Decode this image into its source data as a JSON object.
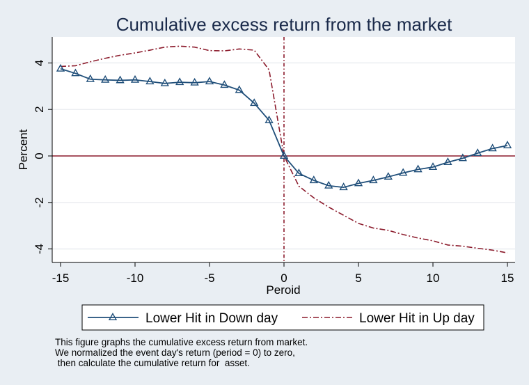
{
  "chart_data": {
    "type": "line",
    "title": "Cumulative excess return from the market",
    "xlabel": "Peroid",
    "ylabel": "Percent",
    "x": [
      -15,
      -14,
      -13,
      -12,
      -11,
      -10,
      -9,
      -8,
      -7,
      -6,
      -5,
      -4,
      -3,
      -2,
      -1,
      0,
      1,
      2,
      3,
      4,
      5,
      6,
      7,
      8,
      9,
      10,
      11,
      12,
      13,
      14,
      15
    ],
    "xlim": [
      -15,
      15
    ],
    "ylim": [
      -4.5,
      5
    ],
    "xticks": [
      -15,
      -10,
      -5,
      0,
      5,
      10,
      15
    ],
    "yticks": [
      -4,
      -2,
      0,
      2,
      4
    ],
    "grid": "horizontal",
    "reference_lines": {
      "x": 0,
      "y": 0
    },
    "legend_position": "bottom",
    "series": [
      {
        "name": "Lower Hit in Down day",
        "color": "#1f4e79",
        "style": "solid-with-triangle-markers",
        "values": [
          3.75,
          3.55,
          3.3,
          3.27,
          3.25,
          3.27,
          3.2,
          3.12,
          3.17,
          3.15,
          3.2,
          3.05,
          2.83,
          2.27,
          1.53,
          0.0,
          -0.75,
          -1.05,
          -1.28,
          -1.35,
          -1.18,
          -1.05,
          -0.9,
          -0.73,
          -0.58,
          -0.48,
          -0.27,
          -0.1,
          0.12,
          0.32,
          0.45
        ]
      },
      {
        "name": "Lower Hit in Up day",
        "color": "#8b1a2b",
        "style": "dash-dot",
        "values": [
          3.85,
          3.88,
          4.05,
          4.2,
          4.33,
          4.43,
          4.55,
          4.68,
          4.72,
          4.68,
          4.53,
          4.52,
          4.6,
          4.55,
          3.7,
          0.0,
          -1.3,
          -1.8,
          -2.2,
          -2.55,
          -2.9,
          -3.1,
          -3.2,
          -3.38,
          -3.53,
          -3.65,
          -3.83,
          -3.88,
          -3.97,
          -4.05,
          -4.17
        ]
      }
    ]
  },
  "note": {
    "line1": "This figure graphs the cumulative excess return from market.",
    "line2": "We normalized the event day's return (period = 0) to zero,",
    "line3": " then calculate the cumulative return for  asset."
  }
}
